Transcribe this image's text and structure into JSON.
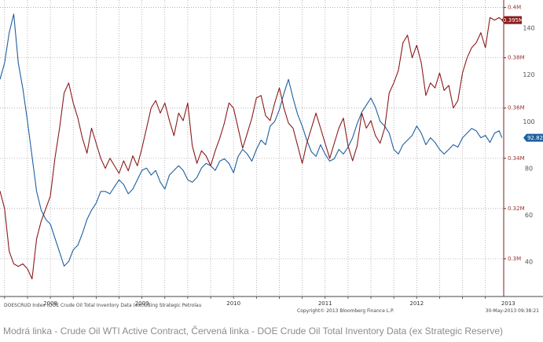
{
  "caption": "Modrá linka - Crude Oil WTI Active Contract, Červená linka - DOE Crude Oil Total Inventory Data (ex Strategic Reserve)",
  "footer": {
    "left_line1": "DOESCRUD Index (DOE Crude Oil Total Inventory Data (excluding Strategic Petrolau",
    "center": "Copyright© 2013 Bloomberg Finance L.P.",
    "right": "30-May-2013 09:38:21"
  },
  "colors": {
    "wti": "#1f5fa0",
    "inventory": "#8b1a1a",
    "grid": "#9a9a9a",
    "axis_text": "#555555"
  },
  "chart_data": {
    "type": "line",
    "title": "",
    "x_ticks": [
      "2008",
      "2009",
      "2010",
      "2011",
      "2012",
      "2013"
    ],
    "x_tick_dates": [
      2008.0,
      2009.0,
      2010.0,
      2011.0,
      2012.0,
      2013.0
    ],
    "xlim": [
      2007.7,
      2013.2
    ],
    "axes": {
      "inventory": {
        "side": "right",
        "ylim": [
          0.285,
          0.403
        ],
        "ticks": [
          0.3,
          0.32,
          0.34,
          0.36,
          0.38,
          0.4
        ],
        "tick_labels": [
          "0.3M",
          "0.32M",
          "0.34M",
          "0.36M",
          "0.38M",
          "0.4M"
        ]
      },
      "wti": {
        "side": "right",
        "ylim": [
          25,
          152
        ],
        "ticks": [
          40,
          60,
          80,
          100,
          120,
          140
        ],
        "tick_labels": [
          "40",
          "60",
          "80",
          "100",
          "120",
          "140"
        ]
      }
    },
    "series": [
      {
        "key": "wti",
        "axis": "wti",
        "last_label": "92.82",
        "points": [
          [
            2007.7,
            118
          ],
          [
            2007.75,
            125
          ],
          [
            2007.8,
            138
          ],
          [
            2007.85,
            146
          ],
          [
            2007.9,
            125
          ],
          [
            2007.95,
            114
          ],
          [
            2008.0,
            100
          ],
          [
            2008.05,
            85
          ],
          [
            2008.1,
            70
          ],
          [
            2008.15,
            62
          ],
          [
            2008.2,
            58
          ],
          [
            2008.25,
            56
          ],
          [
            2008.3,
            50
          ],
          [
            2008.35,
            44
          ],
          [
            2008.4,
            38
          ],
          [
            2008.45,
            40
          ],
          [
            2008.5,
            45
          ],
          [
            2008.55,
            47
          ],
          [
            2008.6,
            52
          ],
          [
            2008.65,
            58
          ],
          [
            2008.7,
            62
          ],
          [
            2008.75,
            65
          ],
          [
            2008.8,
            70
          ],
          [
            2008.85,
            70
          ],
          [
            2008.9,
            69
          ],
          [
            2008.95,
            72
          ],
          [
            2009.0,
            75
          ],
          [
            2009.05,
            73
          ],
          [
            2009.1,
            69
          ],
          [
            2009.15,
            71
          ],
          [
            2009.2,
            75
          ],
          [
            2009.25,
            79
          ],
          [
            2009.3,
            80
          ],
          [
            2009.35,
            77
          ],
          [
            2009.4,
            79
          ],
          [
            2009.45,
            74
          ],
          [
            2009.5,
            71
          ],
          [
            2009.55,
            77
          ],
          [
            2009.6,
            79
          ],
          [
            2009.65,
            81
          ],
          [
            2009.7,
            79
          ],
          [
            2009.75,
            75
          ],
          [
            2009.8,
            74
          ],
          [
            2009.85,
            76
          ],
          [
            2009.9,
            80
          ],
          [
            2009.95,
            82
          ],
          [
            2010.0,
            81
          ],
          [
            2010.05,
            79
          ],
          [
            2010.1,
            83
          ],
          [
            2010.15,
            84
          ],
          [
            2010.2,
            82
          ],
          [
            2010.25,
            78
          ],
          [
            2010.3,
            85
          ],
          [
            2010.35,
            88
          ],
          [
            2010.4,
            86
          ],
          [
            2010.45,
            83
          ],
          [
            2010.5,
            88
          ],
          [
            2010.55,
            92
          ],
          [
            2010.6,
            90
          ],
          [
            2010.65,
            98
          ],
          [
            2010.7,
            100
          ],
          [
            2010.75,
            105
          ],
          [
            2010.8,
            112
          ],
          [
            2010.85,
            118
          ],
          [
            2010.9,
            110
          ],
          [
            2010.95,
            103
          ],
          [
            2011.0,
            98
          ],
          [
            2011.05,
            92
          ],
          [
            2011.1,
            87
          ],
          [
            2011.15,
            85
          ],
          [
            2011.2,
            90
          ],
          [
            2011.25,
            86
          ],
          [
            2011.3,
            83
          ],
          [
            2011.35,
            84
          ],
          [
            2011.4,
            88
          ],
          [
            2011.45,
            86
          ],
          [
            2011.5,
            89
          ],
          [
            2011.55,
            93
          ],
          [
            2011.6,
            99
          ],
          [
            2011.65,
            104
          ],
          [
            2011.7,
            107
          ],
          [
            2011.75,
            110
          ],
          [
            2011.8,
            106
          ],
          [
            2011.85,
            100
          ],
          [
            2011.9,
            98
          ],
          [
            2011.95,
            95
          ],
          [
            2012.0,
            88
          ],
          [
            2012.05,
            86
          ],
          [
            2012.1,
            90
          ],
          [
            2012.15,
            92
          ],
          [
            2012.2,
            94
          ],
          [
            2012.25,
            98
          ],
          [
            2012.3,
            95
          ],
          [
            2012.35,
            90
          ],
          [
            2012.4,
            93
          ],
          [
            2012.45,
            91
          ],
          [
            2012.5,
            88
          ],
          [
            2012.55,
            86
          ],
          [
            2012.6,
            88
          ],
          [
            2012.65,
            90
          ],
          [
            2012.7,
            89
          ],
          [
            2012.75,
            93
          ],
          [
            2012.8,
            95
          ],
          [
            2012.85,
            97
          ],
          [
            2012.9,
            96
          ],
          [
            2012.95,
            93
          ],
          [
            2013.0,
            94
          ],
          [
            2013.05,
            91
          ],
          [
            2013.1,
            95
          ],
          [
            2013.15,
            96
          ],
          [
            2013.18,
            93
          ]
        ]
      },
      {
        "key": "inventory",
        "axis": "inventory",
        "last_label": "0.395M",
        "points": [
          [
            2007.7,
            0.327
          ],
          [
            2007.75,
            0.32
          ],
          [
            2007.8,
            0.303
          ],
          [
            2007.85,
            0.298
          ],
          [
            2007.9,
            0.297
          ],
          [
            2007.95,
            0.298
          ],
          [
            2008.0,
            0.296
          ],
          [
            2008.05,
            0.292
          ],
          [
            2008.1,
            0.308
          ],
          [
            2008.15,
            0.315
          ],
          [
            2008.2,
            0.32
          ],
          [
            2008.25,
            0.325
          ],
          [
            2008.3,
            0.34
          ],
          [
            2008.35,
            0.352
          ],
          [
            2008.4,
            0.366
          ],
          [
            2008.45,
            0.37
          ],
          [
            2008.5,
            0.362
          ],
          [
            2008.55,
            0.356
          ],
          [
            2008.6,
            0.348
          ],
          [
            2008.65,
            0.342
          ],
          [
            2008.7,
            0.352
          ],
          [
            2008.75,
            0.346
          ],
          [
            2008.8,
            0.34
          ],
          [
            2008.85,
            0.336
          ],
          [
            2008.9,
            0.34
          ],
          [
            2008.95,
            0.337
          ],
          [
            2009.0,
            0.334
          ],
          [
            2009.05,
            0.339
          ],
          [
            2009.1,
            0.335
          ],
          [
            2009.15,
            0.341
          ],
          [
            2009.2,
            0.337
          ],
          [
            2009.25,
            0.344
          ],
          [
            2009.3,
            0.352
          ],
          [
            2009.35,
            0.36
          ],
          [
            2009.4,
            0.363
          ],
          [
            2009.45,
            0.358
          ],
          [
            2009.5,
            0.362
          ],
          [
            2009.55,
            0.355
          ],
          [
            2009.6,
            0.349
          ],
          [
            2009.65,
            0.358
          ],
          [
            2009.7,
            0.355
          ],
          [
            2009.75,
            0.362
          ],
          [
            2009.8,
            0.345
          ],
          [
            2009.85,
            0.338
          ],
          [
            2009.9,
            0.343
          ],
          [
            2009.95,
            0.341
          ],
          [
            2010.0,
            0.337
          ],
          [
            2010.05,
            0.343
          ],
          [
            2010.1,
            0.348
          ],
          [
            2010.15,
            0.354
          ],
          [
            2010.2,
            0.362
          ],
          [
            2010.25,
            0.36
          ],
          [
            2010.3,
            0.352
          ],
          [
            2010.35,
            0.344
          ],
          [
            2010.4,
            0.35
          ],
          [
            2010.45,
            0.356
          ],
          [
            2010.5,
            0.364
          ],
          [
            2010.55,
            0.365
          ],
          [
            2010.6,
            0.357
          ],
          [
            2010.65,
            0.355
          ],
          [
            2010.7,
            0.362
          ],
          [
            2010.75,
            0.368
          ],
          [
            2010.8,
            0.36
          ],
          [
            2010.85,
            0.354
          ],
          [
            2010.9,
            0.352
          ],
          [
            2010.95,
            0.345
          ],
          [
            2011.0,
            0.338
          ],
          [
            2011.05,
            0.346
          ],
          [
            2011.1,
            0.352
          ],
          [
            2011.15,
            0.358
          ],
          [
            2011.2,
            0.352
          ],
          [
            2011.25,
            0.346
          ],
          [
            2011.3,
            0.34
          ],
          [
            2011.35,
            0.346
          ],
          [
            2011.4,
            0.352
          ],
          [
            2011.45,
            0.356
          ],
          [
            2011.5,
            0.345
          ],
          [
            2011.55,
            0.339
          ],
          [
            2011.6,
            0.345
          ],
          [
            2011.65,
            0.358
          ],
          [
            2011.7,
            0.352
          ],
          [
            2011.75,
            0.355
          ],
          [
            2011.8,
            0.349
          ],
          [
            2011.85,
            0.346
          ],
          [
            2011.9,
            0.352
          ],
          [
            2011.95,
            0.366
          ],
          [
            2012.0,
            0.37
          ],
          [
            2012.05,
            0.375
          ],
          [
            2012.1,
            0.386
          ],
          [
            2012.15,
            0.389
          ],
          [
            2012.2,
            0.38
          ],
          [
            2012.25,
            0.385
          ],
          [
            2012.3,
            0.378
          ],
          [
            2012.35,
            0.365
          ],
          [
            2012.4,
            0.37
          ],
          [
            2012.45,
            0.368
          ],
          [
            2012.5,
            0.374
          ],
          [
            2012.55,
            0.367
          ],
          [
            2012.6,
            0.369
          ],
          [
            2012.65,
            0.36
          ],
          [
            2012.7,
            0.363
          ],
          [
            2012.75,
            0.374
          ],
          [
            2012.8,
            0.38
          ],
          [
            2012.85,
            0.384
          ],
          [
            2012.9,
            0.386
          ],
          [
            2012.95,
            0.39
          ],
          [
            2013.0,
            0.384
          ],
          [
            2013.05,
            0.396
          ],
          [
            2013.1,
            0.395
          ],
          [
            2013.15,
            0.396
          ],
          [
            2013.18,
            0.395
          ]
        ]
      }
    ]
  }
}
